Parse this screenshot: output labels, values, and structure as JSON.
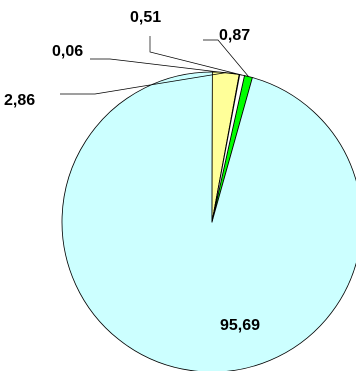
{
  "chart_data": {
    "type": "pie",
    "title": "",
    "start_angle_deg": 12.5,
    "direction": "clockwise",
    "slices": [
      {
        "value": 0.87,
        "label": "0,87",
        "color": "#00FF00"
      },
      {
        "value": 95.69,
        "label": "95,69",
        "color": "#CCFFFF"
      },
      {
        "value": 2.86,
        "label": "2,86",
        "color": "#FFFF99"
      },
      {
        "value": 0.06,
        "label": "0,06",
        "color": "#FFFFFF"
      },
      {
        "value": 0.51,
        "label": "0,51",
        "color": "#FFFFFF"
      }
    ]
  }
}
